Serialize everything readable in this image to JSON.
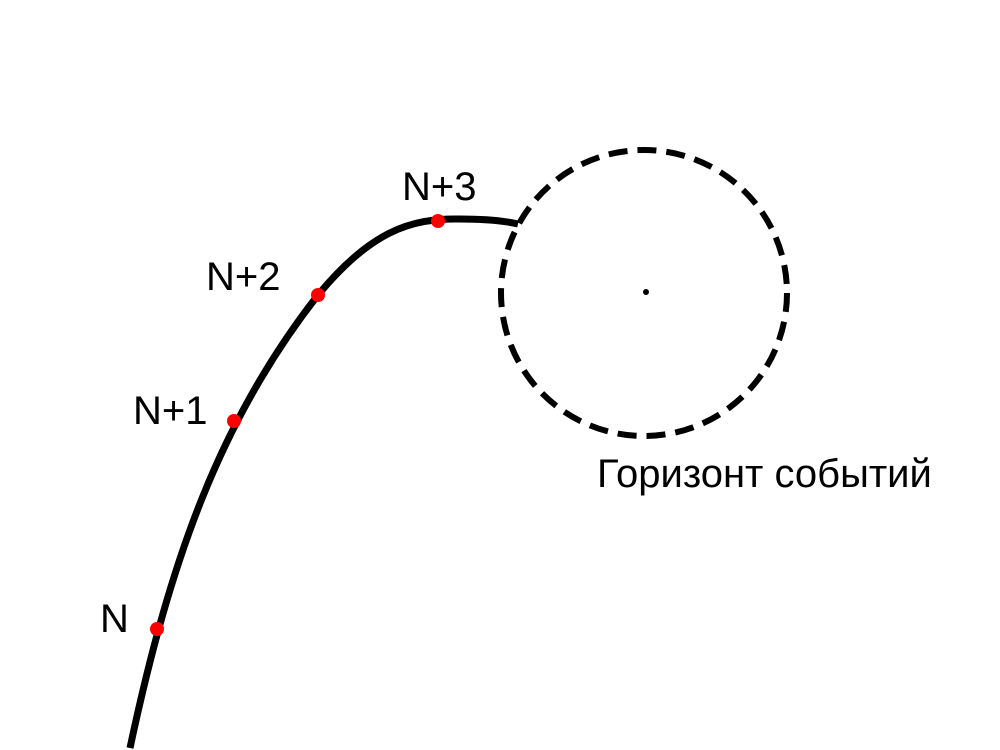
{
  "diagram": {
    "points": [
      {
        "id": "n",
        "label": "N"
      },
      {
        "id": "n1",
        "label": "N+1"
      },
      {
        "id": "n2",
        "label": "N+2"
      },
      {
        "id": "n3",
        "label": "N+3"
      }
    ],
    "horizon": {
      "label": "Горизонт событий"
    }
  },
  "colors": {
    "trajectory": "#000000",
    "point": "#ff0000",
    "horizon": "#000000",
    "singularity": "#000000",
    "text": "#000000"
  }
}
